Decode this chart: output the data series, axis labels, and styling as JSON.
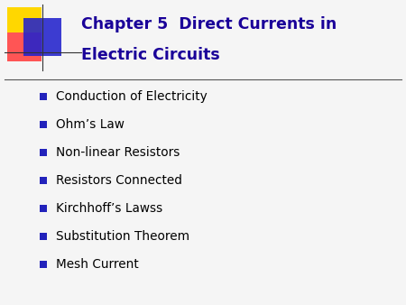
{
  "title_line1": "Chapter 5  Direct Currents in",
  "title_line2": "Electric Circuits",
  "title_color": "#1a0099",
  "bullet_items": [
    "Conduction of Electricity",
    "Ohm’s Law",
    "Non-linear Resistors",
    "Resistors Connected",
    "Kirchhoff’s Lawss",
    "Substitution Theorem",
    "Mesh Current"
  ],
  "bullet_text_color": "#000000",
  "bullet_marker_color": "#2222bb",
  "background_color": "#f5f5f5",
  "separator_color": "#555555",
  "logo_yellow": "#FFD700",
  "logo_red": "#FF5555",
  "logo_blue": "#2222CC",
  "title_fontsize": 12.5,
  "bullet_fontsize": 9.8,
  "fig_width": 4.5,
  "fig_height": 3.38,
  "dpi": 100
}
